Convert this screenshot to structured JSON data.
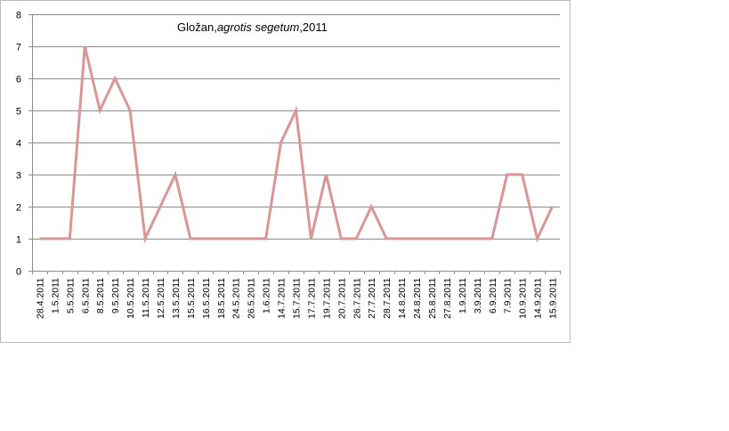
{
  "chart_data": {
    "type": "line",
    "title_plain": "Gložan,",
    "title_italic": "agrotis segetum",
    "title_suffix": ",2011",
    "categories": [
      "28.4.2011",
      "1.5.2011",
      "5.5.2011",
      "6.5.2011",
      "8.5.2011",
      "9.5.2011",
      "10.5.2011",
      "11.5.2011",
      "12.5.2011",
      "13.5.2011",
      "15.5.2011",
      "16.5.2011",
      "18.5.2011",
      "24.5.2011",
      "26.5.2011",
      "1.6.2011",
      "14.7.2011",
      "15.7.2011",
      "17.7.2011",
      "19.7.2011",
      "20.7.2011",
      "26.7.2011",
      "27.7.2011",
      "28.7.2011",
      "14.8.2011",
      "24.8.2011",
      "25.8.2011",
      "27.8.2011",
      "1.9.2011",
      "3.9.2011",
      "6.9.2011",
      "7.9.2011",
      "10.9.2011",
      "14.9.2011",
      "15.9.2011"
    ],
    "series": [
      {
        "values": [
          1,
          1,
          1,
          7,
          5,
          6,
          5,
          1,
          2,
          3,
          1,
          1,
          1,
          1,
          1,
          1,
          4,
          5,
          1,
          3,
          1,
          1,
          2,
          1,
          1,
          1,
          1,
          1,
          1,
          1,
          1,
          3,
          3,
          1,
          2
        ]
      }
    ],
    "ylim": [
      0,
      8
    ],
    "yticks": [
      0,
      1,
      2,
      3,
      4,
      5,
      6,
      7,
      8
    ],
    "grid": true,
    "line_color": "#d99694"
  }
}
